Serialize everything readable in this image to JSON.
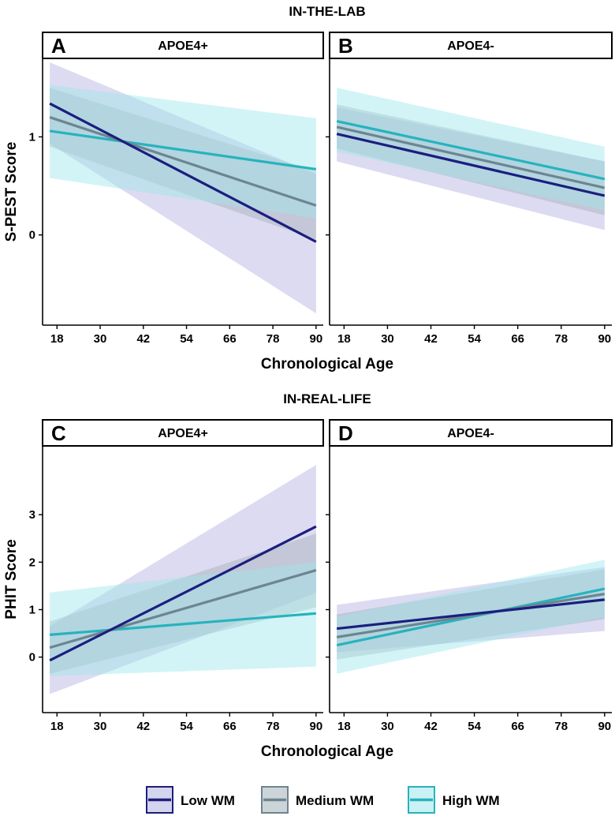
{
  "colors": {
    "low": "#1c1e7e",
    "medium": "#6d8591",
    "high": "#27b3bd",
    "low_band": "#b3b0e0",
    "medium_band": "#a4b0b8",
    "high_band": "#9ee6ea"
  },
  "chart_data": [
    {
      "type": "line",
      "section_title": "IN-THE-LAB",
      "panel": "A",
      "strip": "APOE4+",
      "xlabel": "Chronological Age",
      "ylabel": "S-PEST Score",
      "xticks": [
        18,
        30,
        42,
        54,
        66,
        78,
        90
      ],
      "yticks": [
        0,
        1
      ],
      "xlim": [
        14,
        92
      ],
      "ylim": [
        -0.92,
        1.8
      ],
      "series": [
        {
          "name": "Low WM",
          "key": "low",
          "x": [
            16,
            90
          ],
          "y": [
            1.34,
            -0.07
          ],
          "lower": [
            0.93,
            -0.8
          ],
          "upper": [
            1.76,
            0.62
          ]
        },
        {
          "name": "Medium WM",
          "key": "medium",
          "x": [
            16,
            90
          ],
          "y": [
            1.2,
            0.3
          ],
          "lower": [
            0.9,
            -0.05
          ],
          "upper": [
            1.5,
            0.65
          ]
        },
        {
          "name": "High WM",
          "key": "high",
          "x": [
            16,
            90
          ],
          "y": [
            1.06,
            0.67
          ],
          "lower": [
            0.58,
            0.17
          ],
          "upper": [
            1.53,
            1.19
          ]
        }
      ]
    },
    {
      "type": "line",
      "panel": "B",
      "strip": "APOE4-",
      "xlabel": "Chronological Age",
      "xticks": [
        18,
        30,
        42,
        54,
        66,
        78,
        90
      ],
      "yticks": [
        0,
        1
      ],
      "xlim": [
        14,
        92
      ],
      "ylim": [
        -0.92,
        1.8
      ],
      "series": [
        {
          "name": "Low WM",
          "key": "low",
          "x": [
            16,
            90
          ],
          "y": [
            1.03,
            0.4
          ],
          "lower": [
            0.75,
            0.05
          ],
          "upper": [
            1.3,
            0.75
          ]
        },
        {
          "name": "Medium WM",
          "key": "medium",
          "x": [
            16,
            90
          ],
          "y": [
            1.1,
            0.48
          ],
          "lower": [
            0.88,
            0.2
          ],
          "upper": [
            1.33,
            0.75
          ]
        },
        {
          "name": "High WM",
          "key": "high",
          "x": [
            16,
            90
          ],
          "y": [
            1.16,
            0.57
          ],
          "lower": [
            0.85,
            0.25
          ],
          "upper": [
            1.5,
            0.9
          ]
        }
      ]
    },
    {
      "type": "line",
      "section_title": "IN-REAL-LIFE",
      "panel": "C",
      "strip": "APOE4+",
      "xlabel": "Chronological Age",
      "ylabel": "PHIT Score",
      "xticks": [
        18,
        30,
        42,
        54,
        66,
        78,
        90
      ],
      "yticks": [
        0,
        1,
        2,
        3
      ],
      "xlim": [
        14,
        92
      ],
      "ylim": [
        -1.17,
        4.45
      ],
      "series": [
        {
          "name": "Low WM",
          "key": "low",
          "x": [
            16,
            90
          ],
          "y": [
            -0.07,
            2.75
          ],
          "lower": [
            -0.78,
            1.35
          ],
          "upper": [
            0.65,
            4.05
          ]
        },
        {
          "name": "Medium WM",
          "key": "medium",
          "x": [
            16,
            90
          ],
          "y": [
            0.2,
            1.83
          ],
          "lower": [
            -0.35,
            1.05
          ],
          "upper": [
            0.75,
            2.6
          ]
        },
        {
          "name": "High WM",
          "key": "high",
          "x": [
            16,
            90
          ],
          "y": [
            0.47,
            0.92
          ],
          "lower": [
            -0.4,
            -0.2
          ],
          "upper": [
            1.36,
            2.0
          ]
        }
      ]
    },
    {
      "type": "line",
      "panel": "D",
      "strip": "APOE4-",
      "xlabel": "Chronological Age",
      "xticks": [
        18,
        30,
        42,
        54,
        66,
        78,
        90
      ],
      "yticks": [
        0,
        1,
        2,
        3
      ],
      "xlim": [
        14,
        92
      ],
      "ylim": [
        -1.17,
        4.45
      ],
      "series": [
        {
          "name": "Low WM",
          "key": "low",
          "x": [
            16,
            90
          ],
          "y": [
            0.6,
            1.21
          ],
          "lower": [
            0.1,
            0.55
          ],
          "upper": [
            1.1,
            1.9
          ]
        },
        {
          "name": "Medium WM",
          "key": "medium",
          "x": [
            16,
            90
          ],
          "y": [
            0.42,
            1.33
          ],
          "lower": [
            -0.05,
            0.8
          ],
          "upper": [
            0.9,
            1.85
          ]
        },
        {
          "name": "High WM",
          "key": "high",
          "x": [
            16,
            90
          ],
          "y": [
            0.25,
            1.44
          ],
          "lower": [
            -0.35,
            0.85
          ],
          "upper": [
            0.85,
            2.05
          ]
        }
      ]
    }
  ],
  "legend": [
    {
      "label": "Low WM",
      "key": "low"
    },
    {
      "label": "Medium WM",
      "key": "medium"
    },
    {
      "label": "High WM",
      "key": "high"
    }
  ]
}
